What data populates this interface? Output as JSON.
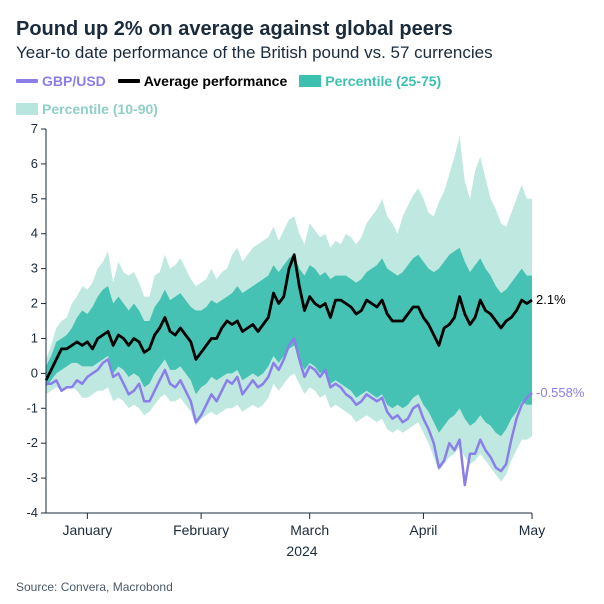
{
  "title": "Pound up 2% on average against global peers",
  "subtitle": "Year-to date performance of the British pound vs. 57 currencies",
  "legend": {
    "gbpusd": "GBP/USD",
    "avg": "Average performance",
    "p2575": "Percentile (25-75)",
    "p1090": "Percentile (10-90)"
  },
  "source": "Source: Convera, Macrobond",
  "chart": {
    "type": "line+area",
    "background_color": "#ffffff",
    "font_family": "Arial",
    "title_fontsize": 20,
    "subtitle_fontsize": 17,
    "legend_fontsize": 14,
    "axis_fontsize": 13,
    "colors": {
      "gbpusd": "#8a7fe8",
      "avg": "#000000",
      "p2575": "#3ec0b0",
      "p1090": "#b8e6de",
      "axis_line": "#1a2b3c",
      "text": "#1a2b3c"
    },
    "line_widths": {
      "gbpusd": 2.5,
      "avg": 2.8
    },
    "ylim": [
      -4,
      7
    ],
    "ytick_step": 1,
    "x_months": [
      "January",
      "February",
      "March",
      "April",
      "May"
    ],
    "x_year": "2024",
    "n_points": 95,
    "month_tick_indices": [
      8,
      30,
      51,
      73,
      94
    ],
    "end_labels": {
      "avg": "2.1%",
      "gbpusd": "-0.558%"
    },
    "series": {
      "p90": [
        0.4,
        0.8,
        1.3,
        1.5,
        1.6,
        2.0,
        2.2,
        2.5,
        2.4,
        2.6,
        3.0,
        3.2,
        3.5,
        2.6,
        3.2,
        2.9,
        2.8,
        2.9,
        2.6,
        2.2,
        2.2,
        2.8,
        2.9,
        3.4,
        3.0,
        3.1,
        3.3,
        3.0,
        2.7,
        2.5,
        2.6,
        2.7,
        3.0,
        2.7,
        2.9,
        3.0,
        3.4,
        3.6,
        3.2,
        3.4,
        3.6,
        3.7,
        3.8,
        3.9,
        4.2,
        3.8,
        4.1,
        4.4,
        4.5,
        4.0,
        3.7,
        4.3,
        4.1,
        3.9,
        4.0,
        3.6,
        3.8,
        3.7,
        4.0,
        3.9,
        3.7,
        3.9,
        4.3,
        4.5,
        4.7,
        5.0,
        4.5,
        4.3,
        4.0,
        4.5,
        4.8,
        5.1,
        5.3,
        5.0,
        4.6,
        4.5,
        4.9,
        5.2,
        5.7,
        6.2,
        6.8,
        5.5,
        5.0,
        5.8,
        6.2,
        5.6,
        5.0,
        4.7,
        4.3,
        4.2,
        4.6,
        5.0,
        5.4,
        5.0,
        5.0
      ],
      "p75": [
        0.2,
        0.5,
        0.9,
        1.0,
        1.1,
        1.3,
        1.6,
        1.8,
        1.7,
        1.9,
        2.2,
        2.4,
        2.5,
        2.0,
        2.2,
        2.0,
        1.8,
        2.0,
        1.8,
        1.5,
        1.5,
        1.9,
        2.1,
        2.4,
        2.1,
        2.2,
        2.3,
        2.1,
        1.9,
        1.8,
        1.8,
        1.9,
        2.1,
        2.0,
        2.1,
        2.2,
        2.3,
        2.5,
        2.3,
        2.4,
        2.5,
        2.6,
        2.7,
        2.8,
        3.1,
        2.9,
        3.1,
        3.3,
        3.4,
        3.0,
        2.8,
        3.1,
        3.0,
        2.8,
        2.9,
        2.7,
        2.8,
        2.8,
        2.8,
        2.7,
        2.6,
        2.7,
        2.9,
        3.0,
        3.1,
        3.3,
        3.0,
        2.9,
        2.8,
        2.9,
        3.1,
        3.3,
        3.4,
        3.2,
        3.0,
        2.9,
        3.0,
        3.2,
        3.4,
        3.5,
        3.6,
        3.2,
        2.9,
        3.1,
        3.3,
        3.0,
        2.8,
        2.5,
        2.3,
        2.4,
        2.6,
        2.8,
        3.0,
        2.8,
        2.8
      ],
      "avg": [
        -0.2,
        0.1,
        0.4,
        0.7,
        0.7,
        0.8,
        0.9,
        0.8,
        0.9,
        0.7,
        1.0,
        1.1,
        1.2,
        0.8,
        1.1,
        1.0,
        0.8,
        1.0,
        0.9,
        0.6,
        0.7,
        1.1,
        1.3,
        1.6,
        1.2,
        1.1,
        1.3,
        1.1,
        0.9,
        0.4,
        0.6,
        0.8,
        1.0,
        1.0,
        1.3,
        1.5,
        1.4,
        1.5,
        1.2,
        1.3,
        1.4,
        1.2,
        1.4,
        1.6,
        2.3,
        2.0,
        2.2,
        3.0,
        3.4,
        2.5,
        1.8,
        2.2,
        2.0,
        1.9,
        2.0,
        1.6,
        2.1,
        2.1,
        2.0,
        1.9,
        1.7,
        1.8,
        2.1,
        2.0,
        1.9,
        2.1,
        1.7,
        1.5,
        1.5,
        1.5,
        1.7,
        1.9,
        1.9,
        1.6,
        1.4,
        1.1,
        0.8,
        1.3,
        1.4,
        1.6,
        2.2,
        1.7,
        1.4,
        1.6,
        2.1,
        1.8,
        1.7,
        1.5,
        1.3,
        1.5,
        1.6,
        1.8,
        2.1,
        2.0,
        2.1
      ],
      "p25": [
        -0.4,
        -0.2,
        0.0,
        0.1,
        0.2,
        0.3,
        0.3,
        0.2,
        0.2,
        0.2,
        0.3,
        0.4,
        0.5,
        0.0,
        0.2,
        0.1,
        -0.1,
        0.0,
        -0.1,
        -0.4,
        -0.3,
        0.0,
        0.2,
        0.4,
        0.1,
        0.1,
        0.2,
        0.0,
        -0.2,
        -0.6,
        -0.4,
        -0.3,
        -0.1,
        -0.2,
        -0.1,
        0.0,
        0.0,
        0.1,
        -0.2,
        -0.1,
        0.0,
        -0.1,
        0.0,
        0.2,
        0.5,
        0.3,
        0.5,
        0.7,
        0.8,
        0.4,
        0.1,
        0.3,
        0.2,
        0.0,
        0.1,
        -0.3,
        -0.2,
        -0.3,
        -0.4,
        -0.5,
        -0.7,
        -0.6,
        -0.5,
        -0.6,
        -0.7,
        -0.6,
        -0.9,
        -1.0,
        -0.9,
        -1.0,
        -0.9,
        -0.7,
        -0.6,
        -0.9,
        -1.1,
        -1.4,
        -1.7,
        -1.5,
        -1.3,
        -1.2,
        -1.0,
        -1.3,
        -1.5,
        -1.4,
        -1.2,
        -1.4,
        -1.5,
        -1.7,
        -1.8,
        -1.6,
        -1.3,
        -1.1,
        -0.8,
        -0.9,
        -0.9
      ],
      "p10": [
        -0.6,
        -0.5,
        -0.4,
        -0.5,
        -0.4,
        -0.4,
        -0.5,
        -0.7,
        -0.7,
        -0.6,
        -0.5,
        -0.5,
        -0.4,
        -0.8,
        -0.7,
        -0.8,
        -1.0,
        -0.9,
        -1.0,
        -1.2,
        -1.1,
        -0.9,
        -0.7,
        -0.6,
        -0.8,
        -0.8,
        -0.7,
        -0.9,
        -1.1,
        -1.5,
        -1.3,
        -1.2,
        -1.1,
        -1.2,
        -1.1,
        -1.0,
        -1.0,
        -0.9,
        -1.1,
        -1.0,
        -0.9,
        -1.0,
        -0.9,
        -0.7,
        -0.3,
        -0.5,
        -0.3,
        -0.1,
        0.0,
        -0.3,
        -0.6,
        -0.4,
        -0.5,
        -0.7,
        -0.6,
        -1.0,
        -0.9,
        -1.0,
        -1.1,
        -1.2,
        -1.4,
        -1.3,
        -1.2,
        -1.3,
        -1.4,
        -1.3,
        -1.6,
        -1.7,
        -1.6,
        -1.7,
        -1.6,
        -1.5,
        -1.4,
        -1.7,
        -2.0,
        -2.4,
        -2.8,
        -2.6,
        -2.4,
        -2.3,
        -2.1,
        -2.4,
        -2.6,
        -2.5,
        -2.3,
        -2.5,
        -2.7,
        -2.9,
        -3.1,
        -2.9,
        -2.5,
        -2.2,
        -1.9,
        -1.9,
        -1.8
      ],
      "gbpusd": [
        -0.3,
        -0.3,
        -0.2,
        -0.5,
        -0.4,
        -0.4,
        -0.2,
        -0.3,
        -0.1,
        0.0,
        0.1,
        0.3,
        0.4,
        -0.1,
        0.0,
        -0.3,
        -0.6,
        -0.5,
        -0.3,
        -0.8,
        -0.8,
        -0.5,
        -0.2,
        0.1,
        -0.3,
        -0.4,
        -0.2,
        -0.5,
        -0.8,
        -1.4,
        -1.2,
        -0.9,
        -0.6,
        -0.8,
        -0.5,
        -0.2,
        -0.3,
        -0.1,
        -0.6,
        -0.4,
        -0.2,
        -0.4,
        -0.3,
        -0.1,
        0.3,
        0.1,
        0.4,
        0.8,
        1.0,
        0.4,
        -0.1,
        0.2,
        0.1,
        -0.1,
        0.1,
        -0.4,
        -0.3,
        -0.4,
        -0.6,
        -0.7,
        -0.9,
        -0.8,
        -0.6,
        -0.7,
        -0.8,
        -0.7,
        -1.1,
        -1.3,
        -1.2,
        -1.4,
        -1.3,
        -1.0,
        -0.9,
        -1.3,
        -1.6,
        -2.0,
        -2.7,
        -2.5,
        -2.0,
        -2.2,
        -1.9,
        -3.2,
        -2.3,
        -2.3,
        -1.9,
        -2.2,
        -2.4,
        -2.7,
        -2.8,
        -2.6,
        -1.9,
        -1.3,
        -0.9,
        -0.7,
        -0.558
      ]
    }
  }
}
